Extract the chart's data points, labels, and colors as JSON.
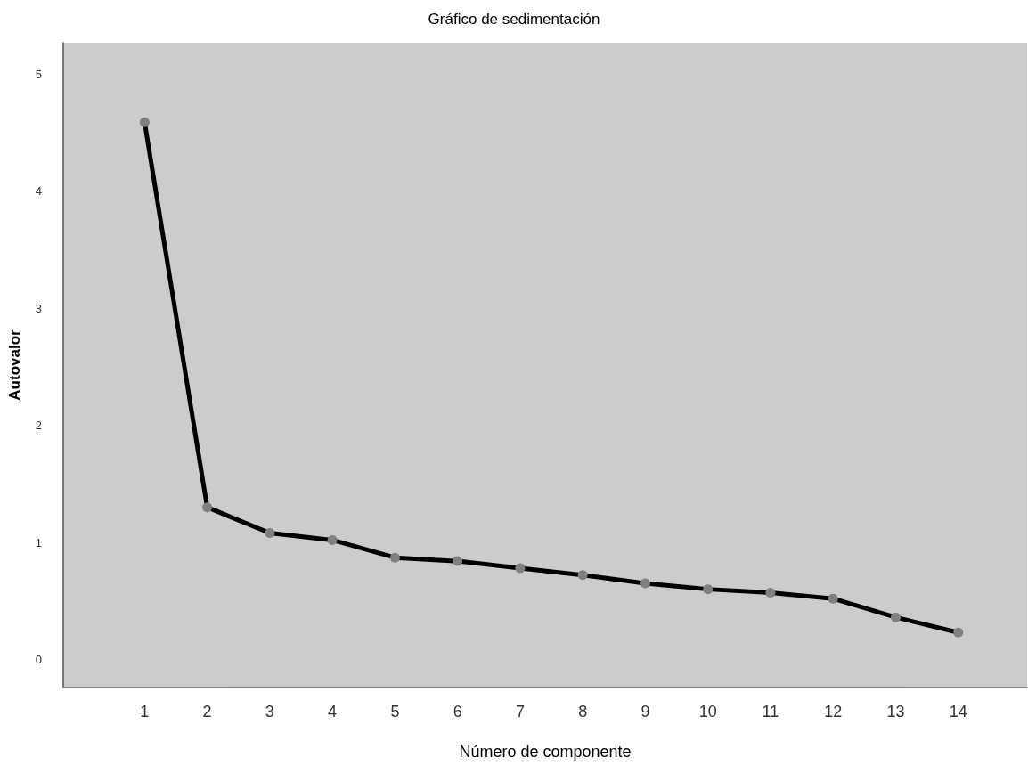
{
  "chart_data": {
    "type": "line",
    "title": "Gráfico de sedimentación",
    "xlabel": "Número de componente",
    "ylabel": "Autovalor",
    "x": [
      1,
      2,
      3,
      4,
      5,
      6,
      7,
      8,
      9,
      10,
      11,
      12,
      13,
      14
    ],
    "series": [
      {
        "color": "#000000",
        "values": [
          4.59,
          1.3,
          1.08,
          1.02,
          0.87,
          0.84,
          0.78,
          0.72,
          0.65,
          0.6,
          0.57,
          0.52,
          0.36,
          0.23
        ]
      }
    ],
    "xlim": [
      -0.3,
      15.1
    ],
    "xticks": [
      1,
      2,
      3,
      4,
      5,
      6,
      7,
      8,
      9,
      10,
      11,
      12,
      13,
      14
    ],
    "ylim": [
      -0.24,
      5.27
    ],
    "yticks": [
      0,
      1,
      2,
      3,
      4,
      5
    ],
    "marker": "circle",
    "line_style": "solid"
  }
}
